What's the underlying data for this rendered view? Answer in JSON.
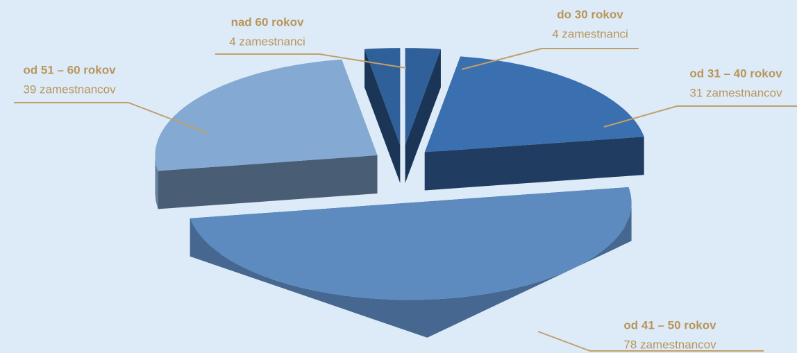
{
  "chart_data": {
    "type": "pie",
    "categories": [
      "do 30 rokov",
      "od 31 – 40 rokov",
      "od 41 – 50 rokov",
      "od 51 – 60 rokov",
      "nad 60 rokov"
    ],
    "values": [
      4,
      31,
      78,
      39,
      4
    ],
    "value_labels": [
      "4 zamestnanci",
      "31 zamestnancov",
      "78 zamestnancov",
      "39 zamestnancov",
      "4 zamestnanci"
    ],
    "colors": [
      "#30609a",
      "#3a6fb0",
      "#5d8bc0",
      "#84a9d2",
      "#30609a"
    ]
  }
}
